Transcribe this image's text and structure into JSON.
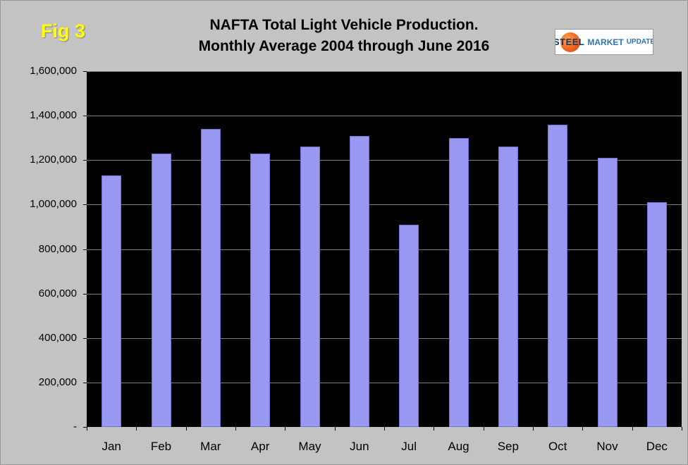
{
  "header": {
    "fig_label": "Fig 3"
  },
  "logo": {
    "steel": "STEEL",
    "market": "MARKET",
    "update": "UPDATE"
  },
  "colors": {
    "bar": "#9999f2",
    "plot_background": "#000000",
    "page_background": "#c3c3c3",
    "fig_label": "#ffff00",
    "gridline": "#7f7f7f"
  },
  "chart_data": {
    "type": "bar",
    "title": "NAFTA Total Light Vehicle Production.",
    "subtitle": "Monthly Average 2004 through June 2016",
    "categories": [
      "Jan",
      "Feb",
      "Mar",
      "Apr",
      "May",
      "Jun",
      "Jul",
      "Aug",
      "Sep",
      "Oct",
      "Nov",
      "Dec"
    ],
    "values": [
      1130000,
      1230000,
      1340000,
      1230000,
      1260000,
      1310000,
      910000,
      1300000,
      1260000,
      1360000,
      1210000,
      1010000
    ],
    "xlabel": "",
    "ylabel": "",
    "ylim": [
      0,
      1600000
    ],
    "ytick_step": 200000,
    "y_tick_labels": [
      "1,600,000",
      "1,400,000",
      "1,200,000",
      "1,000,000",
      "800,000",
      "600,000",
      "400,000",
      "200,000",
      "-"
    ],
    "grid": true,
    "legend_position": "none",
    "bar_color": "#9999f2"
  }
}
